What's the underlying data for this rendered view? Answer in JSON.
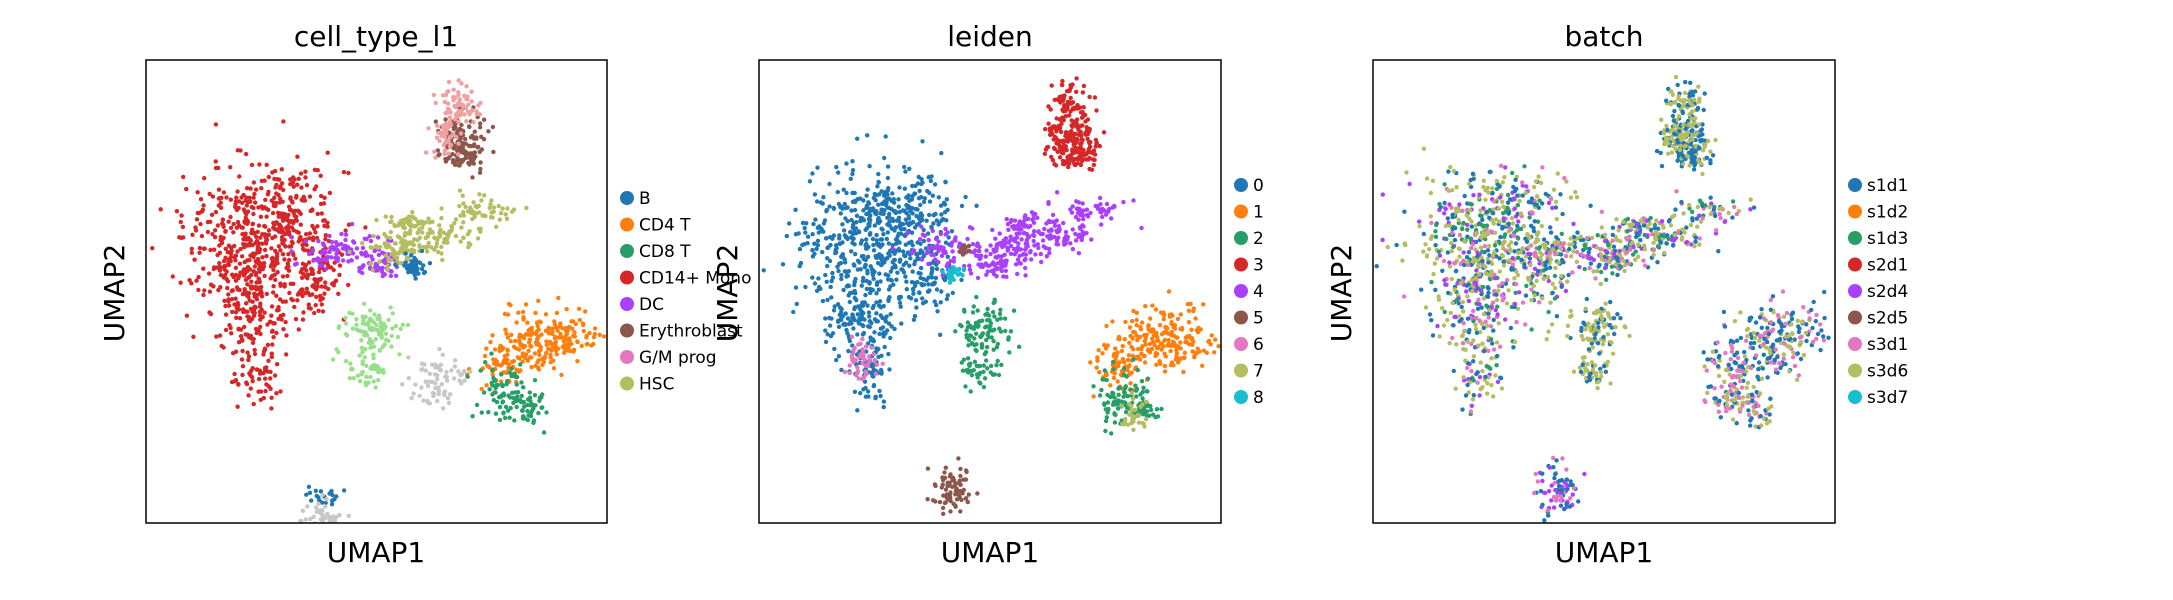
{
  "chart_data": [
    {
      "type": "scatter",
      "title": "cell_type_l1",
      "xlabel": "UMAP1",
      "ylabel": "UMAP2",
      "grid": false,
      "legend_position": "right",
      "legend": [
        {
          "name": "B",
          "color": "#1f77b4"
        },
        {
          "name": "CD4 T",
          "color": "#ff7f0e"
        },
        {
          "name": "CD8 T",
          "color": "#279e68"
        },
        {
          "name": "CD14+ Mono",
          "color": "#d62728"
        },
        {
          "name": "DC",
          "color": "#aa40fc"
        },
        {
          "name": "Erythroblast",
          "color": "#8c564b"
        },
        {
          "name": "G/M prog",
          "color": "#e377c2"
        },
        {
          "name": "HSC",
          "color": "#b5bd61"
        }
      ]
    },
    {
      "type": "scatter",
      "title": "leiden",
      "xlabel": "UMAP1",
      "ylabel": "UMAP2",
      "grid": false,
      "legend_position": "right",
      "legend": [
        {
          "name": "0",
          "color": "#1f77b4"
        },
        {
          "name": "1",
          "color": "#ff7f0e"
        },
        {
          "name": "2",
          "color": "#279e68"
        },
        {
          "name": "3",
          "color": "#d62728"
        },
        {
          "name": "4",
          "color": "#aa40fc"
        },
        {
          "name": "5",
          "color": "#8c564b"
        },
        {
          "name": "6",
          "color": "#e377c2"
        },
        {
          "name": "7",
          "color": "#b5bd61"
        },
        {
          "name": "8",
          "color": "#17becf"
        }
      ]
    },
    {
      "type": "scatter",
      "title": "batch",
      "xlabel": "UMAP1",
      "ylabel": "UMAP2",
      "grid": false,
      "legend_position": "right",
      "legend": [
        {
          "name": "s1d1",
          "color": "#1f77b4"
        },
        {
          "name": "s1d2",
          "color": "#ff7f0e"
        },
        {
          "name": "s1d3",
          "color": "#279e68"
        },
        {
          "name": "s2d1",
          "color": "#d62728"
        },
        {
          "name": "s2d4",
          "color": "#aa40fc"
        },
        {
          "name": "s2d5",
          "color": "#8c564b"
        },
        {
          "name": "s3d1",
          "color": "#e377c2"
        },
        {
          "name": "s3d6",
          "color": "#b5bd61"
        },
        {
          "name": "s3d7",
          "color": "#17becf"
        }
      ]
    }
  ]
}
